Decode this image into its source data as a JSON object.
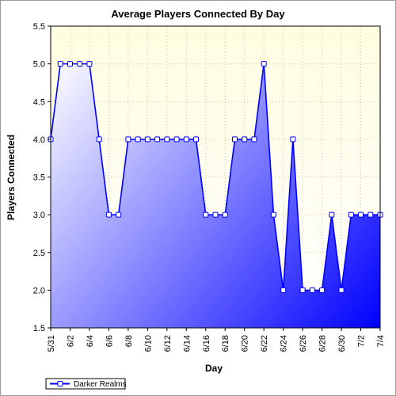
{
  "chart_data": {
    "type": "area",
    "title": "Average Players Connected By Day",
    "xlabel": "Day",
    "ylabel": "Players Connected",
    "ylim": [
      1.5,
      5.5
    ],
    "yticks": [
      "1.5",
      "2.0",
      "2.5",
      "3.0",
      "3.5",
      "4.0",
      "4.5",
      "5.0",
      "5.5"
    ],
    "x": [
      "5/31",
      "6/1",
      "6/2",
      "6/3",
      "6/4",
      "6/5",
      "6/6",
      "6/7",
      "6/8",
      "6/9",
      "6/10",
      "6/11",
      "6/12",
      "6/13",
      "6/14",
      "6/15",
      "6/16",
      "6/17",
      "6/18",
      "6/19",
      "6/20",
      "6/21",
      "6/22",
      "6/23",
      "6/24",
      "6/25",
      "6/26",
      "6/27",
      "6/28",
      "6/29",
      "6/30",
      "7/1",
      "7/2",
      "7/3",
      "7/4"
    ],
    "xtick_labels": [
      "5/31",
      "6/2",
      "6/4",
      "6/6",
      "6/8",
      "6/10",
      "6/12",
      "6/14",
      "6/16",
      "6/18",
      "6/20",
      "6/22",
      "6/24",
      "6/26",
      "6/28",
      "6/30",
      "7/2",
      "7/4"
    ],
    "series": [
      {
        "name": "Darker Realms",
        "values": [
          4,
          5,
          5,
          5,
          5,
          4,
          3,
          3,
          4,
          4,
          4,
          4,
          4,
          4,
          4,
          4,
          3,
          3,
          3,
          4,
          4,
          4,
          5,
          3,
          2,
          4,
          2,
          2,
          2,
          3,
          2,
          3,
          3,
          3,
          3
        ]
      }
    ],
    "grid": true,
    "legend": "bottom-left",
    "colors": {
      "line": "#0000ff",
      "marker_fill": "#ffffff",
      "area_light": "#ffffff",
      "area_dark": "#0000ff",
      "plot_bg_top": "#fffde0",
      "plot_bg_bottom": "#ffffff",
      "grid": "#c8c8a0"
    }
  }
}
